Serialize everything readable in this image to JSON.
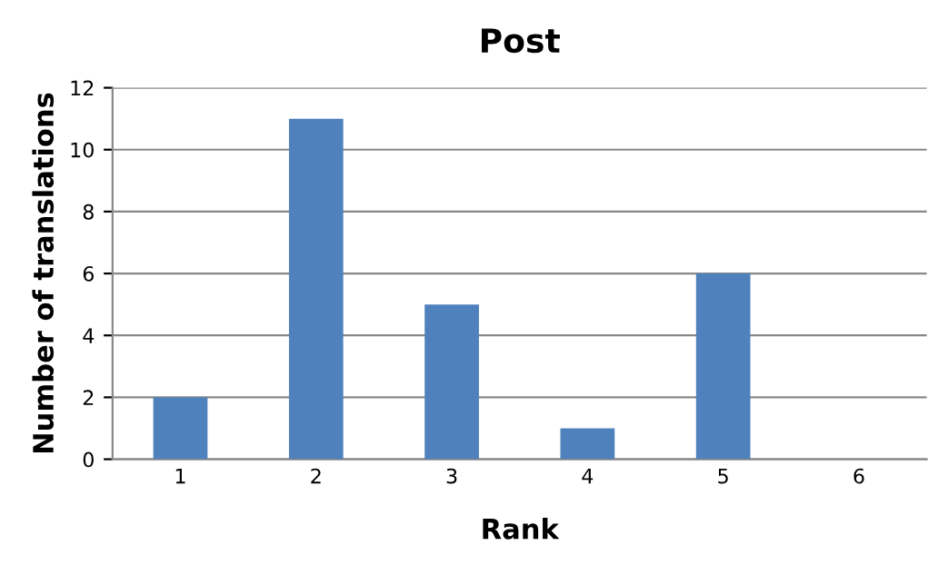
{
  "chart_data": {
    "type": "bar",
    "title": "Post",
    "xlabel": "Rank",
    "ylabel": "Number of translations",
    "categories": [
      "1",
      "2",
      "3",
      "4",
      "5",
      "6"
    ],
    "values": [
      2,
      11,
      5,
      1,
      6,
      0
    ],
    "color": "#4f81bd",
    "ylim": [
      0,
      12
    ],
    "yticks": [
      0,
      2,
      4,
      6,
      8,
      10,
      12
    ],
    "grid": "y"
  }
}
